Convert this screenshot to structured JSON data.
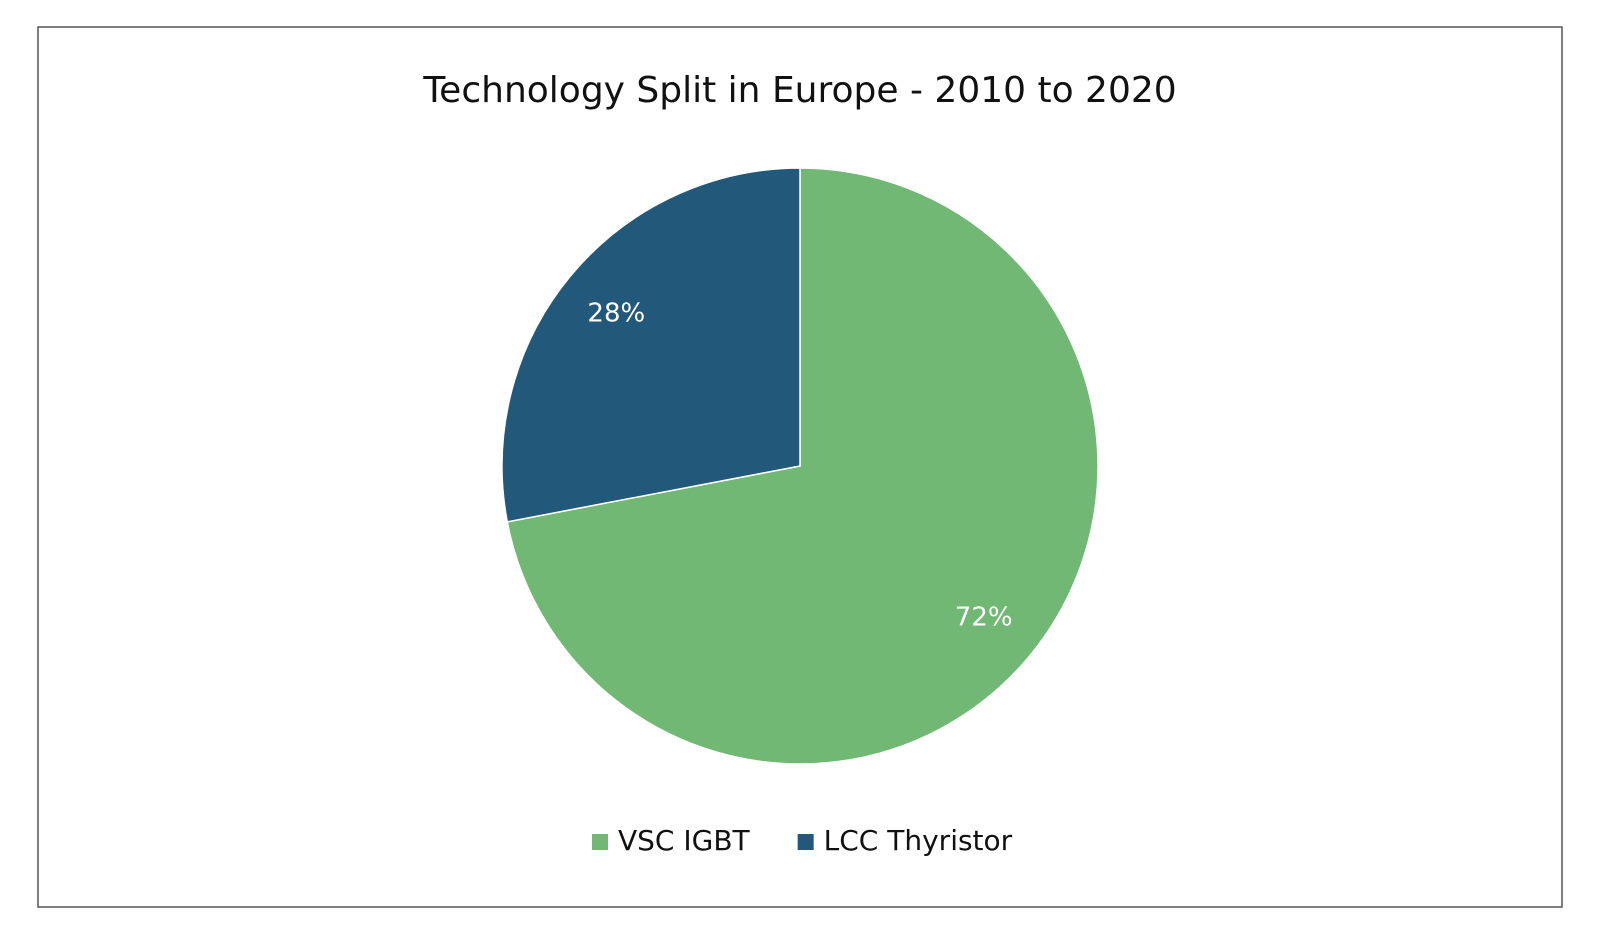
{
  "chart_data": {
    "type": "pie",
    "title": "Technology Split in Europe - 2010 to 2020",
    "categories": [
      "VSC IGBT",
      "LCC Thyristor"
    ],
    "values": [
      72,
      28
    ],
    "value_labels": [
      "72%",
      "28%"
    ],
    "colors": [
      "#70b874",
      "#22587a"
    ],
    "legend": "bottom"
  }
}
